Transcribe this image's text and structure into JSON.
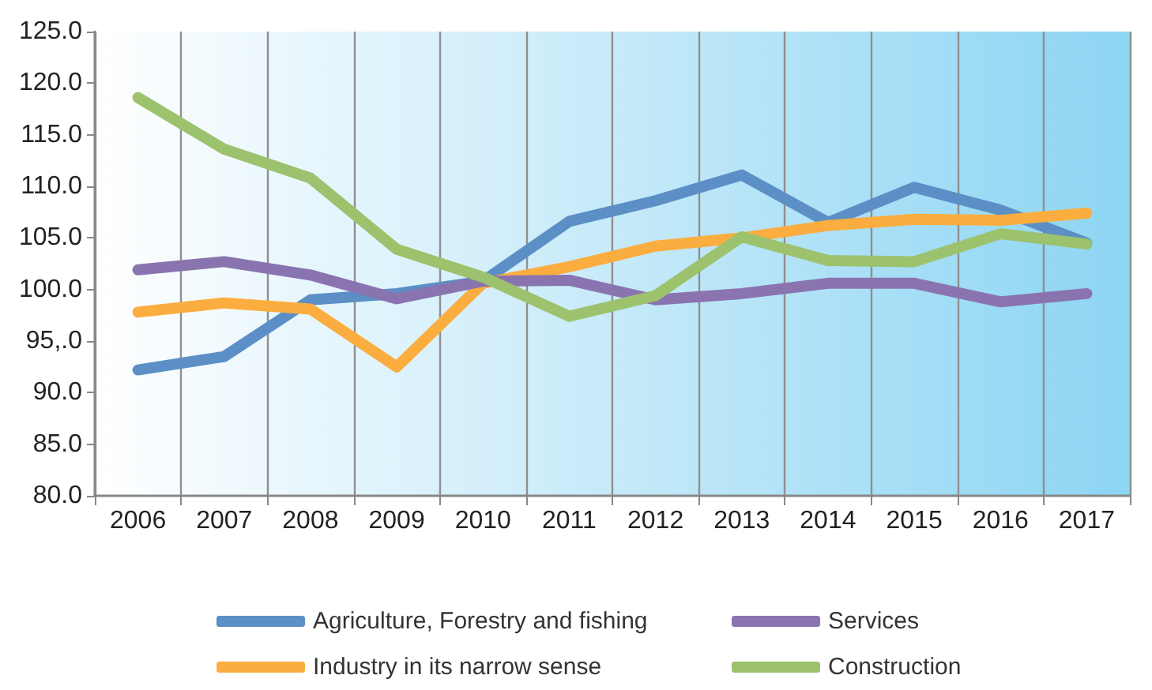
{
  "chart_data": {
    "type": "line",
    "categories": [
      "2006",
      "2007",
      "2008",
      "2009",
      "2010",
      "2011",
      "2012",
      "2013",
      "2014",
      "2015",
      "2016",
      "2017"
    ],
    "series": [
      {
        "name": "Agriculture, Forestry and fishing",
        "color": "#5b8fc5",
        "values": [
          92.2,
          93.5,
          99.0,
          99.6,
          100.8,
          106.6,
          108.6,
          111.1,
          106.5,
          109.9,
          107.7,
          104.5
        ]
      },
      {
        "name": "Industry in its narrow sense",
        "color": "#fbad3f",
        "values": [
          97.8,
          98.7,
          98.1,
          92.5,
          100.6,
          102.2,
          104.2,
          105.0,
          106.2,
          106.8,
          106.7,
          107.4
        ]
      },
      {
        "name": "Services",
        "color": "#8a74b0",
        "values": [
          101.9,
          102.7,
          101.4,
          99.1,
          100.8,
          100.9,
          99.0,
          99.6,
          100.6,
          100.6,
          98.8,
          99.6
        ]
      },
      {
        "name": "Construction",
        "color": "#9cc26d",
        "values": [
          118.6,
          113.6,
          110.8,
          103.9,
          101.2,
          97.4,
          99.4,
          105.1,
          102.8,
          102.7,
          105.4,
          104.4
        ]
      }
    ],
    "ylim": [
      80,
      125
    ],
    "yticks": [
      {
        "value": 80,
        "label": "80.0"
      },
      {
        "value": 85,
        "label": "85.0"
      },
      {
        "value": 90,
        "label": "90.0"
      },
      {
        "value": 95,
        "label": "95,.0"
      },
      {
        "value": 100,
        "label": "100.0"
      },
      {
        "value": 105,
        "label": "105.0"
      },
      {
        "value": 110,
        "label": "110.0"
      },
      {
        "value": 115,
        "label": "115.0"
      },
      {
        "value": 120,
        "label": "120.0"
      },
      {
        "value": 125,
        "label": "125.0"
      }
    ],
    "grid": "x",
    "legend": "bottom",
    "marker": "none",
    "line_style": "solid"
  }
}
